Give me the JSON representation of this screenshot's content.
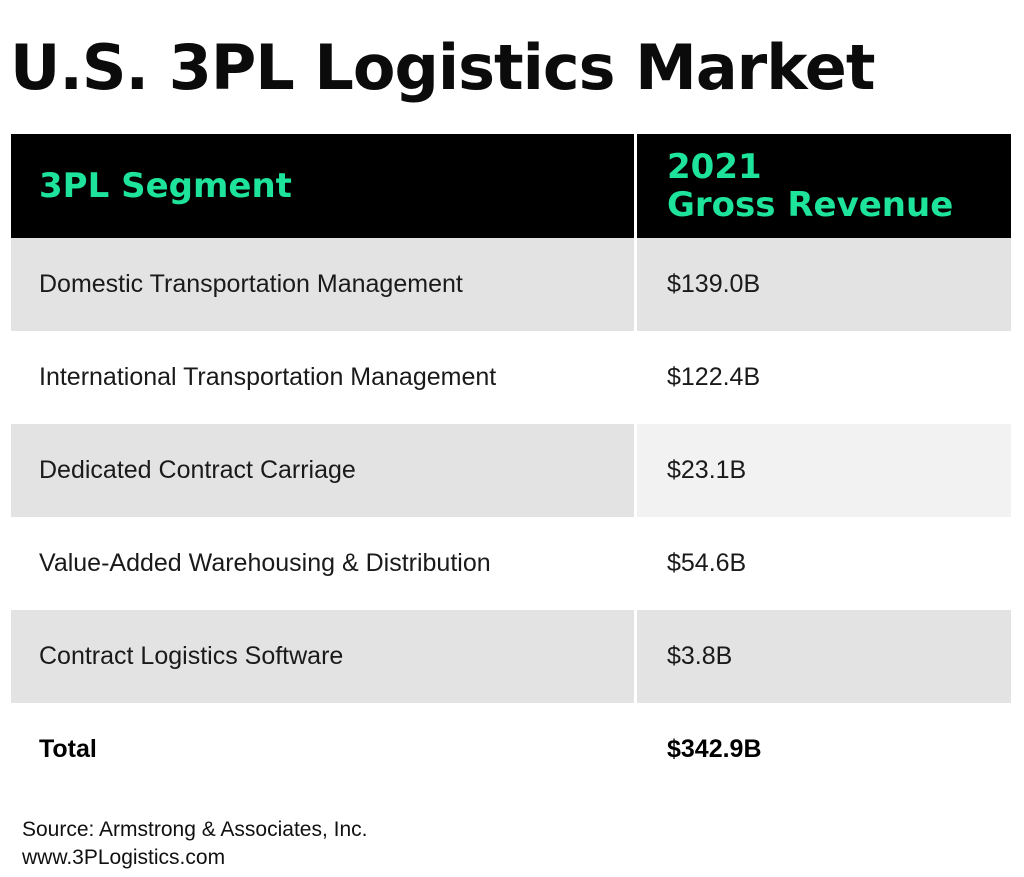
{
  "title": "U.S. 3PL Logistics Market",
  "chart_data": {
    "type": "table",
    "columns": [
      "3PL Segment",
      "2021 Gross Revenue"
    ],
    "revenue_header_lines": [
      "2021",
      "Gross Revenue"
    ],
    "rows": [
      {
        "segment": "Domestic Transportation Management",
        "revenue": "$139.0B",
        "value": 139.0
      },
      {
        "segment": "International Transportation Management",
        "revenue": "$122.4B",
        "value": 122.4
      },
      {
        "segment": "Dedicated Contract Carriage",
        "revenue": "$23.1B",
        "value": 23.1
      },
      {
        "segment": "Value-Added Warehousing & Distribution",
        "revenue": "$54.6B",
        "value": 54.6
      },
      {
        "segment": "Contract Logistics Software",
        "revenue": "$3.8B",
        "value": 3.8
      }
    ],
    "total": {
      "label": "Total",
      "revenue": "$342.9B",
      "value": 342.9
    }
  },
  "source": {
    "line1": "Source: Armstrong & Associates, Inc.",
    "line2": "www.3PLogistics.com"
  },
  "colors": {
    "header_bg": "#000000",
    "header_text": "#1de39b",
    "row_shade": "#e3e3e3"
  }
}
